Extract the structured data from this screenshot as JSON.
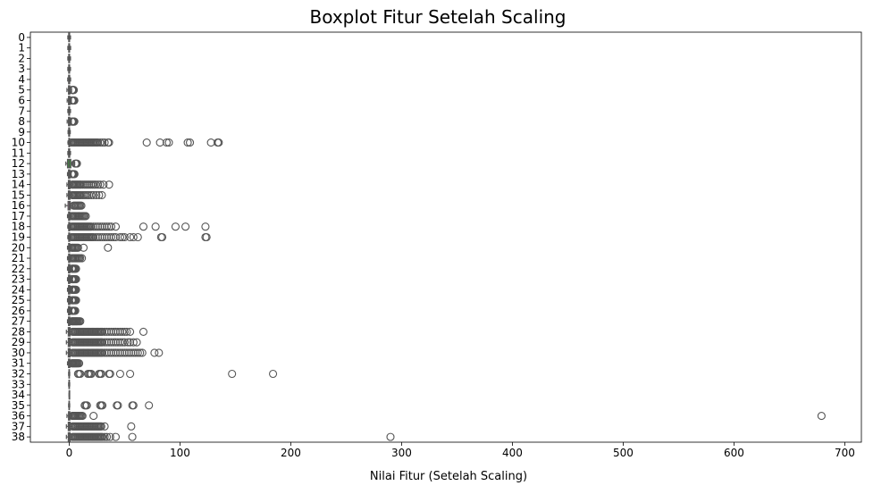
{
  "chart_data": {
    "type": "boxplot",
    "orientation": "horizontal",
    "title": "Boxplot Fitur Setelah Scaling",
    "xlabel": "Nilai Fitur (Setelah Scaling)",
    "ylabel": "",
    "xlim": [
      -35,
      715
    ],
    "x_ticks": [
      0,
      100,
      200,
      300,
      400,
      500,
      600,
      700
    ],
    "categories": [
      "0",
      "1",
      "2",
      "3",
      "4",
      "5",
      "6",
      "7",
      "8",
      "9",
      "10",
      "11",
      "12",
      "13",
      "14",
      "15",
      "16",
      "17",
      "18",
      "19",
      "20",
      "21",
      "22",
      "23",
      "24",
      "25",
      "26",
      "27",
      "28",
      "29",
      "30",
      "31",
      "32",
      "33",
      "34",
      "35",
      "36",
      "37",
      "38"
    ],
    "grid": false,
    "legend": "none",
    "box_colors": [
      "#3274a1",
      "#e1812c",
      "#3a923a",
      "#c03d3e",
      "#9372b2",
      "#845b53",
      "#d684bd",
      "#7f7f7f",
      "#a9aa35",
      "#2ed0e0"
    ],
    "edge_color": "#555555",
    "series": [
      {
        "category": "0",
        "box": [
          -0.4,
          0,
          0.4
        ],
        "whiskers": [
          -1.2,
          1.2
        ],
        "outliers": []
      },
      {
        "category": "1",
        "box": [
          -0.4,
          0,
          0.4
        ],
        "whiskers": [
          -1.2,
          1.3
        ],
        "outliers": []
      },
      {
        "category": "2",
        "box": [
          -0.4,
          0,
          0.4
        ],
        "whiskers": [
          -1.2,
          1.2
        ],
        "outliers": []
      },
      {
        "category": "3",
        "box": [
          -0.4,
          0,
          0.4
        ],
        "whiskers": [
          -1.2,
          1.2
        ],
        "outliers": []
      },
      {
        "category": "4",
        "box": [
          -0.5,
          0,
          0.5
        ],
        "whiskers": [
          -1.3,
          1.3
        ],
        "outliers": []
      },
      {
        "category": "5",
        "box": [
          -0.6,
          -0.1,
          0.6
        ],
        "whiskers": [
          -2,
          2.2
        ],
        "outliers": [
          2.6,
          3,
          3.4,
          3.8,
          4.2
        ]
      },
      {
        "category": "6",
        "box": [
          -0.6,
          0,
          0.6
        ],
        "whiskers": [
          -1.8,
          2
        ],
        "outliers": [
          2.4,
          2.9,
          3.3,
          3.8,
          4.2,
          4.7
        ]
      },
      {
        "category": "7",
        "box": [
          -0.4,
          0,
          0.4
        ],
        "whiskers": [
          -1.2,
          1.2
        ],
        "outliers": []
      },
      {
        "category": "8",
        "box": [
          -0.6,
          0,
          0.6
        ],
        "whiskers": [
          -1.8,
          2
        ],
        "outliers": [
          2.4,
          2.9,
          3.3,
          3.8,
          4.2,
          4.7
        ]
      },
      {
        "category": "9",
        "box": [
          -0.4,
          0,
          0.4
        ],
        "whiskers": [
          -1,
          1
        ],
        "outliers": []
      },
      {
        "category": "10",
        "box": [
          -0.3,
          0,
          0.3
        ],
        "whiskers": [
          -1,
          1.5
        ],
        "outliers": [
          2,
          3,
          4,
          5,
          6,
          7,
          8,
          9,
          10,
          11,
          12,
          13,
          14,
          15,
          16,
          17,
          18,
          19,
          20,
          21,
          22,
          23,
          24,
          25,
          26,
          28,
          30,
          32,
          35,
          36,
          70,
          82,
          88,
          90,
          107,
          109,
          128,
          134,
          135
        ]
      },
      {
        "category": "11",
        "box": [
          -0.5,
          0,
          0.5
        ],
        "whiskers": [
          -1.2,
          1.2
        ],
        "outliers": []
      },
      {
        "category": "12",
        "box": [
          -1.5,
          0,
          1.5
        ],
        "whiskers": [
          -3,
          5
        ],
        "outliers": [
          5.5,
          6.2,
          7
        ]
      },
      {
        "category": "13",
        "box": [
          -0.6,
          0,
          0.6
        ],
        "whiskers": [
          -1.5,
          1.8
        ],
        "outliers": [
          2.3,
          2.8,
          3.3,
          3.8,
          4.3,
          4.8
        ]
      },
      {
        "category": "14",
        "box": [
          -0.7,
          0,
          0.7
        ],
        "whiskers": [
          -2,
          2.2
        ],
        "outliers": [
          2.6,
          3.5,
          4.5,
          5.5,
          6.5,
          7.5,
          8.5,
          9.5,
          10.5,
          12,
          13.5,
          15,
          16.5,
          18,
          19.5,
          21,
          22.5,
          24,
          26,
          28,
          31,
          36
        ]
      },
      {
        "category": "15",
        "box": [
          -0.7,
          0,
          0.7
        ],
        "whiskers": [
          -2,
          2.2
        ],
        "outliers": [
          2.6,
          3.5,
          4.5,
          5.5,
          6.5,
          7.5,
          8.5,
          9.5,
          10.5,
          12,
          13.5,
          15,
          16.5,
          18,
          20,
          22,
          24.5,
          27,
          29.5
        ]
      },
      {
        "category": "16",
        "box": [
          -1,
          0,
          1
        ],
        "whiskers": [
          -3.5,
          3.5
        ],
        "outliers": [
          4,
          5,
          6,
          7,
          8,
          9,
          10,
          11
        ]
      },
      {
        "category": "17",
        "box": [
          -0.5,
          0,
          0.5
        ],
        "whiskers": [
          -1.5,
          1.8
        ],
        "outliers": [
          2.3,
          3,
          4,
          5,
          6,
          7,
          8,
          9,
          10,
          11,
          12,
          13,
          14,
          15
        ]
      },
      {
        "category": "18",
        "box": [
          -0.4,
          0,
          0.4
        ],
        "whiskers": [
          -1.2,
          1.5
        ],
        "outliers": [
          2,
          3,
          4,
          5,
          6,
          7,
          8,
          9,
          10,
          11,
          12,
          13,
          14,
          15,
          16,
          17,
          18,
          19,
          20,
          22,
          24,
          26,
          28,
          30,
          32,
          34,
          36,
          38,
          42,
          67,
          78,
          96,
          105,
          123
        ]
      },
      {
        "category": "19",
        "box": [
          -0.4,
          0,
          0.4
        ],
        "whiskers": [
          -1.2,
          1.5
        ],
        "outliers": [
          2,
          3,
          4,
          5,
          6,
          7,
          8,
          9,
          10,
          11,
          12,
          13,
          14,
          15,
          16,
          17,
          18,
          19,
          20,
          21,
          22,
          24,
          26,
          28,
          30,
          32,
          34,
          36,
          38,
          40,
          42,
          46,
          48,
          50,
          55,
          58,
          62,
          83,
          84,
          123,
          124
        ]
      },
      {
        "category": "20",
        "box": [
          -0.5,
          0,
          0.5
        ],
        "whiskers": [
          -1.5,
          1.8
        ],
        "outliers": [
          2.3,
          3,
          4,
          5,
          6,
          7,
          8,
          13,
          35
        ]
      },
      {
        "category": "21",
        "box": [
          -0.5,
          0,
          0.5
        ],
        "whiskers": [
          -1.5,
          1.8
        ],
        "outliers": [
          2.3,
          3,
          4,
          5,
          6,
          7,
          8,
          9,
          10,
          11.5
        ]
      },
      {
        "category": "22",
        "box": [
          -0.6,
          0,
          0.6
        ],
        "whiskers": [
          -1.5,
          1.8
        ],
        "outliers": [
          2.3,
          2.8,
          3.3,
          3.8,
          4.3,
          4.8,
          5.5,
          6.2
        ]
      },
      {
        "category": "23",
        "box": [
          -0.6,
          0,
          0.6
        ],
        "whiskers": [
          -1.5,
          1.8
        ],
        "outliers": [
          2.3,
          2.8,
          3.3,
          3.8,
          4.3,
          4.8,
          5.5,
          6.2
        ]
      },
      {
        "category": "24",
        "box": [
          -0.6,
          0,
          0.6
        ],
        "whiskers": [
          -1.5,
          1.8
        ],
        "outliers": [
          2.3,
          2.8,
          3.3,
          3.8,
          4.3,
          4.8,
          5.5,
          6.2
        ]
      },
      {
        "category": "25",
        "box": [
          -0.6,
          0,
          0.6
        ],
        "whiskers": [
          -1.5,
          1.8
        ],
        "outliers": [
          2.3,
          2.8,
          3.3,
          3.8,
          4.3,
          4.8,
          5.5,
          6.2
        ]
      },
      {
        "category": "26",
        "box": [
          -0.6,
          0,
          0.6
        ],
        "whiskers": [
          -1.5,
          1.8
        ],
        "outliers": [
          2.3,
          2.8,
          3.3,
          3.8,
          4.3,
          4.8,
          5.5
        ]
      },
      {
        "category": "27",
        "box": [
          -0.6,
          0,
          0.6
        ],
        "whiskers": [
          -1.5,
          1.8
        ],
        "outliers": [
          2.3,
          3,
          3.7,
          4.4,
          5.1,
          5.8,
          6.5,
          7.2,
          8,
          9,
          10
        ]
      },
      {
        "category": "28",
        "box": [
          -0.8,
          0,
          0.8
        ],
        "whiskers": [
          -2.5,
          2.5
        ],
        "outliers": [
          3,
          4,
          5,
          6,
          7,
          8,
          9,
          10,
          11,
          12,
          13,
          14,
          15,
          16,
          17,
          18,
          19,
          20,
          21,
          22,
          23,
          24,
          25,
          26,
          27,
          28,
          29,
          30,
          32,
          34,
          36,
          38,
          40,
          42,
          44,
          46,
          48,
          50,
          52,
          55,
          67
        ]
      },
      {
        "category": "29",
        "box": [
          -0.8,
          0,
          0.8
        ],
        "whiskers": [
          -2.5,
          2.5
        ],
        "outliers": [
          3,
          4,
          5,
          6,
          7,
          8,
          9,
          10,
          11,
          12,
          13,
          14,
          15,
          16,
          17,
          18,
          19,
          20,
          21,
          22,
          23,
          24,
          25,
          26,
          27,
          28,
          29,
          30,
          32,
          34,
          36,
          38,
          40,
          42,
          44,
          46,
          48,
          50,
          53,
          55,
          58,
          61
        ]
      },
      {
        "category": "30",
        "box": [
          -0.8,
          0,
          0.8
        ],
        "whiskers": [
          -2.5,
          2.5
        ],
        "outliers": [
          3,
          4,
          5,
          6,
          7,
          8,
          9,
          10,
          11,
          12,
          13,
          14,
          15,
          16,
          17,
          18,
          19,
          20,
          21,
          22,
          23,
          24,
          25,
          26,
          27,
          28,
          29,
          30,
          32,
          34,
          36,
          38,
          40,
          42,
          44,
          46,
          48,
          50,
          52,
          54,
          56,
          58,
          60,
          62,
          64,
          66,
          77,
          81
        ]
      },
      {
        "category": "31",
        "box": [
          -0.6,
          0,
          0.6
        ],
        "whiskers": [
          -1.5,
          1.8
        ],
        "outliers": [
          2.3,
          3,
          3.7,
          4.4,
          5.1,
          5.8,
          6.5,
          7.2,
          8,
          9
        ]
      },
      {
        "category": "32",
        "box": [
          -0.2,
          0,
          0.2
        ],
        "whiskers": [
          -0.5,
          0.5
        ],
        "outliers": [
          8,
          9,
          10,
          17,
          18,
          19,
          20,
          27,
          28,
          29,
          36,
          37,
          46,
          55,
          147,
          184
        ]
      },
      {
        "category": "33",
        "box": [
          -0.2,
          0,
          0.2
        ],
        "whiskers": [
          -0.5,
          0.5
        ],
        "outliers": []
      },
      {
        "category": "34",
        "box": [
          0,
          0,
          0
        ],
        "whiskers": [
          0,
          0
        ],
        "outliers": []
      },
      {
        "category": "35",
        "box": [
          -0.2,
          0,
          0.2
        ],
        "whiskers": [
          -0.5,
          0.5
        ],
        "outliers": [
          14,
          15,
          16,
          28,
          29,
          30,
          43,
          44,
          57,
          58,
          72
        ]
      },
      {
        "category": "36",
        "box": [
          -0.6,
          0,
          0.6
        ],
        "whiskers": [
          -2,
          2.2
        ],
        "outliers": [
          2.8,
          3.5,
          4.2,
          5,
          6,
          7,
          8,
          9,
          10,
          11,
          12,
          22,
          679
        ]
      },
      {
        "category": "37",
        "box": [
          -0.8,
          0,
          0.8
        ],
        "whiskers": [
          -2.5,
          2.5
        ],
        "outliers": [
          3,
          4,
          5,
          6,
          7,
          8,
          9,
          10,
          11,
          12,
          13,
          14,
          15,
          16,
          17,
          18,
          19,
          20,
          21,
          22,
          23,
          24,
          25,
          26,
          27,
          28,
          29,
          32,
          56
        ]
      },
      {
        "category": "38",
        "box": [
          -0.8,
          0,
          0.8
        ],
        "whiskers": [
          -2.5,
          2.5
        ],
        "outliers": [
          3,
          4,
          5,
          6,
          7,
          8,
          9,
          10,
          11,
          12,
          13,
          14,
          15,
          16,
          17,
          18,
          19,
          20,
          21,
          22,
          23,
          24,
          25,
          26,
          27,
          28,
          29,
          30,
          32,
          34,
          37,
          42,
          57,
          290
        ]
      }
    ]
  }
}
